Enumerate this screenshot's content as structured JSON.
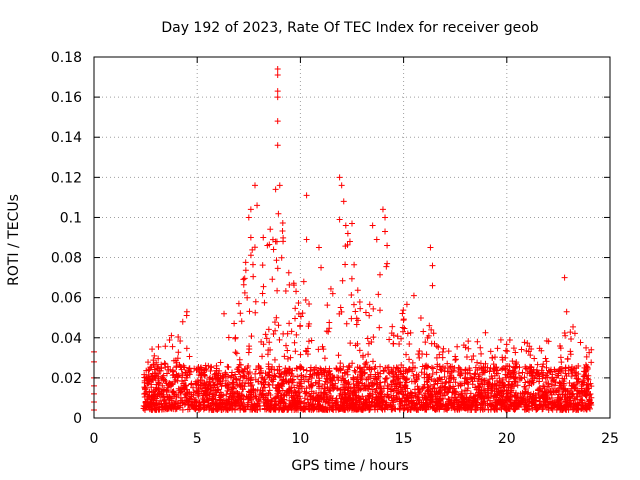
{
  "chart_data": {
    "type": "scatter",
    "title": "Day 192 of 2023, Rate Of TEC Index for receiver geob",
    "xlabel": "GPS time / hours",
    "ylabel": "ROTI / TECUs",
    "xlim": [
      0,
      25
    ],
    "ylim": [
      0,
      0.18
    ],
    "x_ticks": [
      "0",
      "5",
      "10",
      "15",
      "20",
      "25"
    ],
    "y_ticks": [
      "0",
      "0.02",
      "0.04",
      "0.06",
      "0.08",
      "0.1",
      "0.12",
      "0.14",
      "0.16",
      "0.18"
    ],
    "x_tick_values": [
      0,
      5,
      10,
      15,
      20,
      25
    ],
    "y_tick_values": [
      0,
      0.02,
      0.04,
      0.06,
      0.08,
      0.1,
      0.12,
      0.14,
      0.16,
      0.18
    ],
    "grid": true,
    "marker": "plus",
    "color": "#ff0000",
    "density_profile": {
      "hours": [
        0,
        2.4,
        3,
        4,
        4.5,
        5,
        6,
        6.5,
        7,
        7.5,
        8,
        8.5,
        9,
        9.5,
        10,
        10.5,
        11,
        11.5,
        12,
        12.5,
        13,
        13.5,
        14,
        14.5,
        15,
        15.5,
        16,
        16.5,
        17,
        17.5,
        18,
        18.5,
        19,
        19.5,
        20,
        20.5,
        21,
        21.5,
        22,
        22.5,
        23,
        23.5,
        24
      ],
      "envelope": [
        0.033,
        0.034,
        0.035,
        0.045,
        0.052,
        0.025,
        0.03,
        0.052,
        0.06,
        0.09,
        0.085,
        0.1,
        0.11,
        0.07,
        0.065,
        0.08,
        0.06,
        0.065,
        0.095,
        0.085,
        0.06,
        0.07,
        0.1,
        0.055,
        0.06,
        0.05,
        0.05,
        0.045,
        0.04,
        0.04,
        0.04,
        0.038,
        0.045,
        0.04,
        0.042,
        0.04,
        0.038,
        0.035,
        0.04,
        0.035,
        0.05,
        0.04,
        0.035
      ]
    },
    "points": [
      {
        "x": 0,
        "y": 0.033
      },
      {
        "x": 0,
        "y": 0.028
      },
      {
        "x": 0,
        "y": 0.02
      },
      {
        "x": 0,
        "y": 0.016
      },
      {
        "x": 0,
        "y": 0.012
      },
      {
        "x": 0,
        "y": 0.008
      },
      {
        "x": 0,
        "y": 0.004
      },
      {
        "x": 4.3,
        "y": 0.048
      },
      {
        "x": 4.5,
        "y": 0.053
      },
      {
        "x": 6.3,
        "y": 0.052
      },
      {
        "x": 7.5,
        "y": 0.1
      },
      {
        "x": 7.6,
        "y": 0.104
      },
      {
        "x": 7.8,
        "y": 0.116
      },
      {
        "x": 7.9,
        "y": 0.106
      },
      {
        "x": 7.6,
        "y": 0.09
      },
      {
        "x": 8.2,
        "y": 0.09
      },
      {
        "x": 8.4,
        "y": 0.086
      },
      {
        "x": 8.9,
        "y": 0.174
      },
      {
        "x": 8.9,
        "y": 0.171
      },
      {
        "x": 8.9,
        "y": 0.163
      },
      {
        "x": 8.9,
        "y": 0.16
      },
      {
        "x": 8.9,
        "y": 0.148
      },
      {
        "x": 8.9,
        "y": 0.136
      },
      {
        "x": 9.0,
        "y": 0.116
      },
      {
        "x": 8.8,
        "y": 0.114
      },
      {
        "x": 8.7,
        "y": 0.084
      },
      {
        "x": 8.8,
        "y": 0.088
      },
      {
        "x": 10.3,
        "y": 0.111
      },
      {
        "x": 10.3,
        "y": 0.089
      },
      {
        "x": 10.9,
        "y": 0.085
      },
      {
        "x": 11.0,
        "y": 0.075
      },
      {
        "x": 11.9,
        "y": 0.12
      },
      {
        "x": 12.0,
        "y": 0.116
      },
      {
        "x": 12.1,
        "y": 0.108
      },
      {
        "x": 12.2,
        "y": 0.096
      },
      {
        "x": 11.9,
        "y": 0.099
      },
      {
        "x": 12.3,
        "y": 0.092
      },
      {
        "x": 12.5,
        "y": 0.097
      },
      {
        "x": 12.4,
        "y": 0.088
      },
      {
        "x": 13.5,
        "y": 0.096
      },
      {
        "x": 13.7,
        "y": 0.089
      },
      {
        "x": 14.0,
        "y": 0.104
      },
      {
        "x": 14.1,
        "y": 0.1
      },
      {
        "x": 14.1,
        "y": 0.093
      },
      {
        "x": 14.2,
        "y": 0.086
      },
      {
        "x": 14.2,
        "y": 0.077
      },
      {
        "x": 16.3,
        "y": 0.085
      },
      {
        "x": 16.4,
        "y": 0.076
      },
      {
        "x": 16.4,
        "y": 0.066
      },
      {
        "x": 15.5,
        "y": 0.061
      },
      {
        "x": 22.8,
        "y": 0.07
      },
      {
        "x": 22.9,
        "y": 0.053
      }
    ]
  }
}
